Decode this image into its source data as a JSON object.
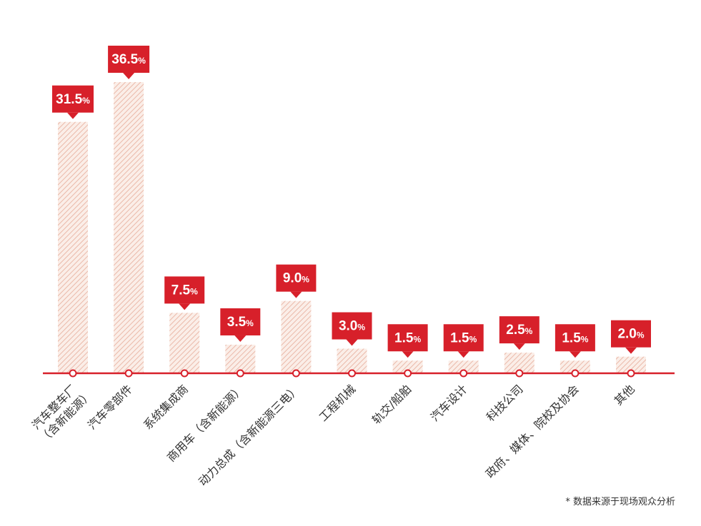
{
  "chart_data": {
    "type": "bar",
    "categories": [
      [
        "汽车整车厂",
        "（含新能源）"
      ],
      [
        "汽车零部件"
      ],
      [
        "系统集成商"
      ],
      [
        "商用车（含新能源）"
      ],
      [
        "动力总成（含新能源三电）"
      ],
      [
        "工程机械"
      ],
      [
        "轨交/船舶"
      ],
      [
        "汽车设计"
      ],
      [
        "科技公司"
      ],
      [
        "政府、媒体、院校及协会"
      ],
      [
        "其他"
      ]
    ],
    "values": [
      31.5,
      36.5,
      7.5,
      3.5,
      9.0,
      3.0,
      1.5,
      1.5,
      2.5,
      1.5,
      2.0
    ],
    "value_labels": [
      "31.5",
      "36.5",
      "7.5",
      "3.5",
      "9.0",
      "3.0",
      "1.5",
      "1.5",
      "2.5",
      "1.5",
      "2.0"
    ],
    "unit": "%",
    "ylim": [
      0,
      40
    ],
    "grid": false,
    "legend": "none"
  },
  "colors": {
    "accent": "#d7202a",
    "bar_stripe": "#e9b8a8",
    "bar_fill": "#fbeee8",
    "text": "#333333"
  },
  "footnote": "* 数据来源于现场观众分析"
}
